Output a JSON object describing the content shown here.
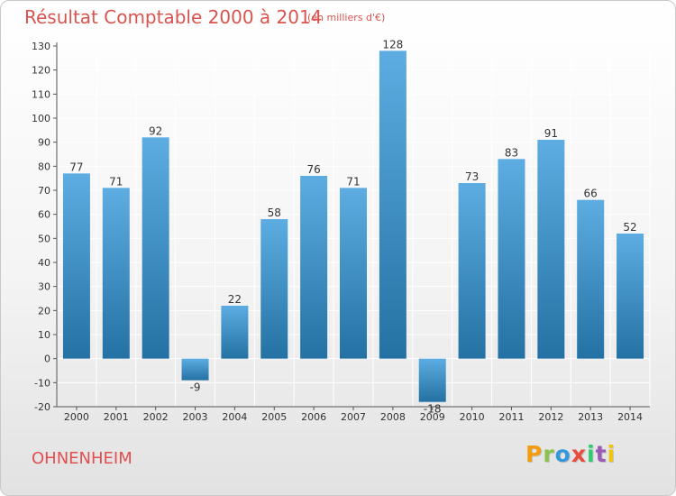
{
  "header": {
    "title": "Résultat Comptable 2000 à 2014",
    "subtitle": "(en milliers d'€)"
  },
  "footer": {
    "commune": "OHNENHEIM",
    "brand": "Proxiti",
    "brand_colors": [
      "#f39c12",
      "#8bc34a",
      "#3498db",
      "#e74c3c",
      "#2ecc71",
      "#9b59b6",
      "#f1c40f"
    ]
  },
  "colors": {
    "title": "#d9534f",
    "bar_top": "#5dade2",
    "bar_bottom": "#2471a3",
    "axis": "#555555",
    "grid": "#ffffff"
  },
  "chart_data": {
    "type": "bar",
    "categories": [
      "2000",
      "2001",
      "2002",
      "2003",
      "2004",
      "2005",
      "2006",
      "2007",
      "2008",
      "2009",
      "2010",
      "2011",
      "2012",
      "2013",
      "2014"
    ],
    "values": [
      77,
      71,
      92,
      -9,
      22,
      58,
      76,
      71,
      128,
      -18,
      73,
      83,
      91,
      66,
      52
    ],
    "ylim": [
      -20,
      130
    ],
    "yticks": [
      -20,
      -10,
      0,
      10,
      20,
      30,
      40,
      50,
      60,
      70,
      80,
      90,
      100,
      110,
      120,
      130
    ],
    "grid": true,
    "xlabel": "",
    "ylabel": ""
  }
}
